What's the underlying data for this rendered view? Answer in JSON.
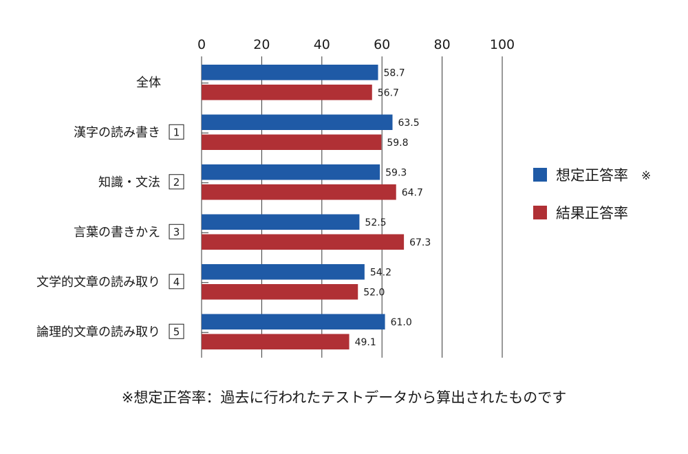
{
  "chart_data": {
    "type": "bar",
    "orientation": "horizontal",
    "categories": [
      {
        "label": "全体",
        "number": ""
      },
      {
        "label": "漢字の読み書き",
        "number": "1"
      },
      {
        "label": "知識・文法",
        "number": "2"
      },
      {
        "label": "言葉の書きかえ",
        "number": "3"
      },
      {
        "label": "文学的文章の読み取り",
        "number": "4"
      },
      {
        "label": "論理的文章の読み取り",
        "number": "5"
      }
    ],
    "series": [
      {
        "name": "想定正答率",
        "mark": "※",
        "color": "#1f5aa6",
        "values": [
          58.7,
          63.5,
          59.3,
          52.5,
          54.2,
          61.0
        ],
        "labels": [
          "58.7",
          "63.5",
          "59.3",
          "52.5",
          "54.2",
          "61.0"
        ]
      },
      {
        "name": "結果正答率",
        "mark": "",
        "color": "#b03035",
        "values": [
          56.7,
          59.8,
          64.7,
          67.3,
          52.0,
          49.1
        ],
        "labels": [
          "56.7",
          "59.8",
          "64.7",
          "67.3",
          "52.0",
          "49.1"
        ]
      }
    ],
    "xlim": [
      0,
      100
    ],
    "xticks": [
      0,
      20,
      40,
      60,
      80,
      100
    ],
    "grid": true,
    "legend_position": "right",
    "footnote": "※想定正答率：過去に行われたテストデータから算出されたものです"
  }
}
